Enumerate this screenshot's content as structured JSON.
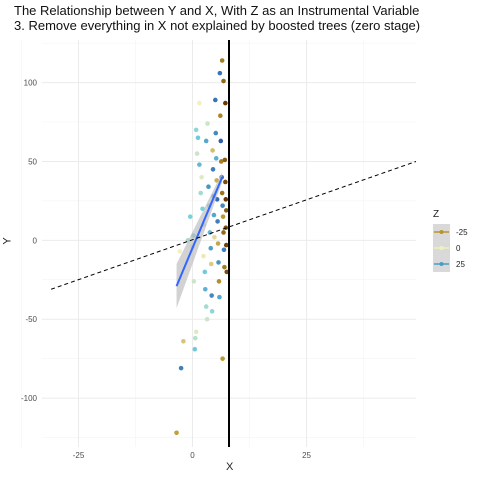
{
  "chart_data": {
    "type": "scatter",
    "title": "The Relationship between Y and X, With Z as an Instrumental Variable",
    "subtitle": "3. Remove everything in X not explained by boosted trees (zero stage)",
    "xlabel": "X",
    "ylabel": "Y",
    "xlim": [
      -33,
      49
    ],
    "ylim": [
      -131,
      127
    ],
    "x_ticks": [
      "-25",
      "0",
      "25"
    ],
    "x_tick_values": [
      -25,
      0,
      25
    ],
    "y_ticks": [
      "100",
      "50",
      "0",
      "-50",
      "-100"
    ],
    "y_tick_values": [
      100,
      50,
      0,
      -50,
      -100
    ],
    "grid": true,
    "legend_position": "right",
    "legend": {
      "title": "Z",
      "entries": [
        {
          "label": "-25",
          "color": "#b8952a"
        },
        {
          "label": "0",
          "color": "#f3efbe"
        },
        {
          "label": "25",
          "color": "#4a9cc7"
        }
      ]
    },
    "vertical_line": {
      "x": 8,
      "color": "#000000"
    },
    "dashed_line": {
      "x1": -31,
      "y1": -31,
      "x2": 49,
      "y2": 50,
      "color": "#000000"
    },
    "fit_line": {
      "x1": -3.5,
      "y1": -29,
      "x2": 6.5,
      "y2": 40,
      "color": "#3366ff",
      "band_color": "#bfbfbf"
    },
    "points": [
      {
        "x": -3.5,
        "y": -122,
        "z": -22
      },
      {
        "x": -2.5,
        "y": -81,
        "z": 30
      },
      {
        "x": -2,
        "y": -64,
        "z": -12
      },
      {
        "x": -2.8,
        "y": -7,
        "z": 0
      },
      {
        "x": -1,
        "y": 0,
        "z": 8
      },
      {
        "x": -0.5,
        "y": 15,
        "z": 12
      },
      {
        "x": 0,
        "y": -4,
        "z": 6
      },
      {
        "x": 0.2,
        "y": 3,
        "z": 16
      },
      {
        "x": 0.3,
        "y": -26,
        "z": 4
      },
      {
        "x": 0.5,
        "y": -69,
        "z": 14
      },
      {
        "x": 0.6,
        "y": -62,
        "z": 6
      },
      {
        "x": 0.8,
        "y": -58,
        "z": 2
      },
      {
        "x": 1,
        "y": 55,
        "z": 4
      },
      {
        "x": 0.8,
        "y": 70,
        "z": 10
      },
      {
        "x": 1.2,
        "y": 65,
        "z": 14
      },
      {
        "x": 1.5,
        "y": 87,
        "z": 0
      },
      {
        "x": 1.5,
        "y": 48,
        "z": 18
      },
      {
        "x": 2,
        "y": 40,
        "z": 2
      },
      {
        "x": 1.8,
        "y": 30,
        "z": 8
      },
      {
        "x": 2.2,
        "y": 20,
        "z": 12
      },
      {
        "x": 2.5,
        "y": 10,
        "z": 6
      },
      {
        "x": 2.4,
        "y": -10,
        "z": -2
      },
      {
        "x": 2.7,
        "y": -20,
        "z": 14
      },
      {
        "x": 2.8,
        "y": -31,
        "z": 20
      },
      {
        "x": 3,
        "y": -42,
        "z": 8
      },
      {
        "x": 3.2,
        "y": -50,
        "z": 4
      },
      {
        "x": 3,
        "y": 63,
        "z": 22
      },
      {
        "x": 3.3,
        "y": 74,
        "z": 4
      },
      {
        "x": 3.5,
        "y": 34,
        "z": 26
      },
      {
        "x": 3.6,
        "y": 22,
        "z": 10
      },
      {
        "x": 3.8,
        "y": 5,
        "z": 18
      },
      {
        "x": 4,
        "y": -5,
        "z": 24
      },
      {
        "x": 4.1,
        "y": -15,
        "z": -10
      },
      {
        "x": 4.2,
        "y": -35,
        "z": 28
      },
      {
        "x": 4.3,
        "y": -45,
        "z": 10
      },
      {
        "x": 4.4,
        "y": 57,
        "z": -14
      },
      {
        "x": 4.5,
        "y": 45,
        "z": 30
      },
      {
        "x": 4.6,
        "y": 28,
        "z": 26
      },
      {
        "x": 4.7,
        "y": 16,
        "z": 22
      },
      {
        "x": 4.8,
        "y": 2,
        "z": -6
      },
      {
        "x": 5,
        "y": 89,
        "z": 32
      },
      {
        "x": 5.1,
        "y": 68,
        "z": 28
      },
      {
        "x": 5.2,
        "y": 52,
        "z": 20
      },
      {
        "x": 5.3,
        "y": 38,
        "z": -18
      },
      {
        "x": 5.4,
        "y": 26,
        "z": 34
      },
      {
        "x": 5.5,
        "y": 12,
        "z": 30
      },
      {
        "x": 5.6,
        "y": -2,
        "z": -20
      },
      {
        "x": 5.7,
        "y": -14,
        "z": 26
      },
      {
        "x": 5.8,
        "y": -26,
        "z": -26
      },
      {
        "x": 5.9,
        "y": -36,
        "z": 22
      },
      {
        "x": 6,
        "y": 106,
        "z": 32
      },
      {
        "x": 6.1,
        "y": 79,
        "z": -28
      },
      {
        "x": 6.2,
        "y": 63,
        "z": 36
      },
      {
        "x": 6.3,
        "y": 50,
        "z": -30
      },
      {
        "x": 6.4,
        "y": 40,
        "z": 34
      },
      {
        "x": 6.5,
        "y": 30,
        "z": -32
      },
      {
        "x": 6.6,
        "y": 22,
        "z": 28
      },
      {
        "x": 6.7,
        "y": 15,
        "z": -24
      },
      {
        "x": 6.8,
        "y": 5,
        "z": -34
      },
      {
        "x": 6.9,
        "y": -6,
        "z": 30
      },
      {
        "x": 7,
        "y": -17,
        "z": -30
      },
      {
        "x": 6.5,
        "y": 114,
        "z": -30
      },
      {
        "x": 6.8,
        "y": 101,
        "z": -34
      },
      {
        "x": 6.6,
        "y": -75,
        "z": -24
      },
      {
        "x": 7.1,
        "y": 51,
        "z": -36
      },
      {
        "x": 7.2,
        "y": 37,
        "z": -40
      },
      {
        "x": 7.3,
        "y": 8,
        "z": -38
      },
      {
        "x": 7.4,
        "y": -3,
        "z": -42
      },
      {
        "x": 7.5,
        "y": -20,
        "z": -40
      },
      {
        "x": 7.3,
        "y": 26,
        "z": -44
      },
      {
        "x": 7.2,
        "y": 87,
        "z": -44
      },
      {
        "x": 7.4,
        "y": 19,
        "z": -36
      }
    ]
  }
}
